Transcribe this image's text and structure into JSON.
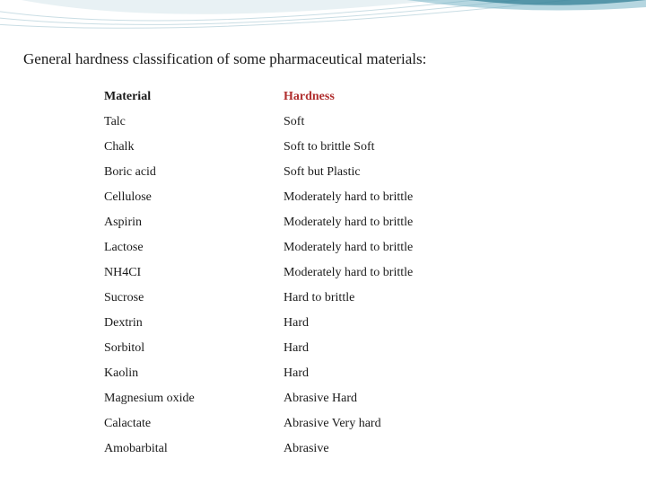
{
  "title": "General hardness classification of some pharmaceutical  materials:",
  "columns": [
    "Material",
    "Hardness"
  ],
  "header_colors": {
    "material": "#1a1a1a",
    "hardness": "#b02e2e"
  },
  "row_text_color": "#1a1a1a",
  "font_family": "Georgia, serif",
  "title_fontsize": 17,
  "cell_fontsize": 14,
  "rows": [
    {
      "material": "Talc",
      "hardness": "Soft"
    },
    {
      "material": "Chalk",
      "hardness": "Soft to brittle Soft"
    },
    {
      "material": "Boric acid",
      "hardness": "Soft but Plastic"
    },
    {
      "material": "Cellulose",
      "hardness": "Moderately hard to brittle"
    },
    {
      "material": "Aspirin",
      "hardness": "Moderately hard to brittle"
    },
    {
      "material": "Lactose",
      "hardness": "Moderately hard to brittle"
    },
    {
      "material": "NH4CI",
      "hardness": "Moderately hard to brittle"
    },
    {
      "material": "Sucrose",
      "hardness": "Hard to brittle"
    },
    {
      "material": "Dextrin",
      "hardness": "Hard"
    },
    {
      "material": "Sorbitol",
      "hardness": "Hard"
    },
    {
      "material": "Kaolin",
      "hardness": "Hard"
    },
    {
      "material": "Magnesium oxide",
      "hardness": "Abrasive Hard"
    },
    {
      "material": "Calactate",
      "hardness": "Abrasive Very hard"
    },
    {
      "material": "Amobarbital",
      "hardness": "Abrasive"
    }
  ],
  "decoration": {
    "colors": {
      "curve_lines": "#c9dde4",
      "band_light": "#e8f1f4",
      "band_mid": "#78b5c7",
      "band_dark": "#2c7a92"
    }
  }
}
